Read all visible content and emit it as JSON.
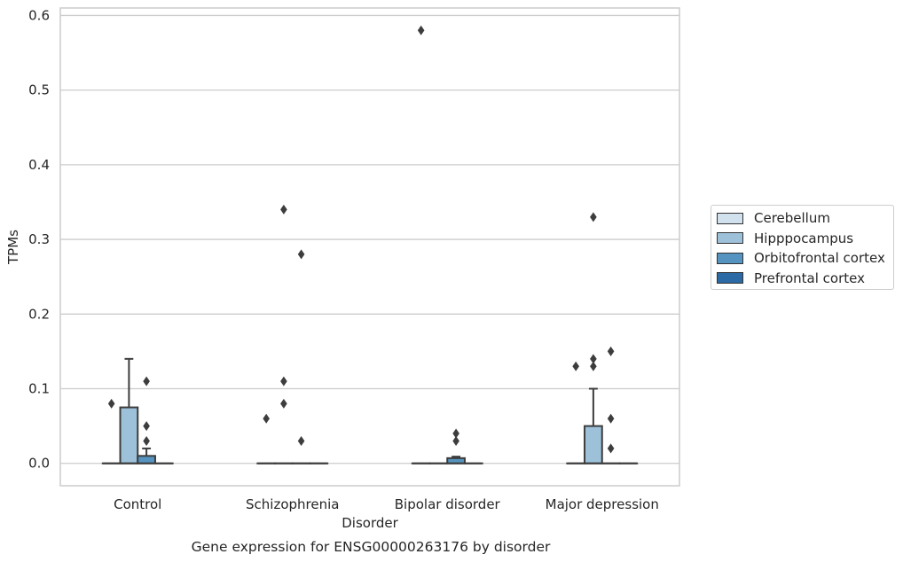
{
  "chart_data": {
    "type": "box",
    "title": "Gene expression for ENSG00000263176 by disorder",
    "xlabel": "Disorder",
    "ylabel": "TPMs",
    "ylim": [
      -0.03,
      0.61
    ],
    "yticks": [
      "0.0",
      "0.1",
      "0.2",
      "0.3",
      "0.4",
      "0.5",
      "0.6"
    ],
    "grid": true,
    "legend_placement": "right",
    "categories": [
      "Control",
      "Schizophrenia",
      "Bipolar disorder",
      "Major depression"
    ],
    "series": [
      {
        "name": "Cerebellum",
        "color": "#d1e1ee",
        "boxes": [
          {
            "q1": 0,
            "median": 0,
            "q3": 0,
            "whisker_low": 0,
            "whisker_high": 0,
            "outliers": [
              0.08
            ]
          },
          {
            "q1": 0,
            "median": 0,
            "q3": 0,
            "whisker_low": 0,
            "whisker_high": 0,
            "outliers": [
              0.06
            ]
          },
          {
            "q1": 0,
            "median": 0,
            "q3": 0,
            "whisker_low": 0,
            "whisker_high": 0,
            "outliers": [
              0.58
            ]
          },
          {
            "q1": 0,
            "median": 0,
            "q3": 0,
            "whisker_low": 0,
            "whisker_high": 0,
            "outliers": [
              0.13
            ]
          }
        ]
      },
      {
        "name": "Hipppocampus",
        "color": "#9ec1da",
        "boxes": [
          {
            "q1": 0,
            "median": 0,
            "q3": 0.075,
            "whisker_low": 0,
            "whisker_high": 0.14,
            "outliers": []
          },
          {
            "q1": 0,
            "median": 0,
            "q3": 0,
            "whisker_low": 0,
            "whisker_high": 0,
            "outliers": [
              0.34,
              0.11,
              0.08
            ]
          },
          {
            "q1": 0,
            "median": 0,
            "q3": 0,
            "whisker_low": 0,
            "whisker_high": 0,
            "outliers": []
          },
          {
            "q1": 0,
            "median": 0,
            "q3": 0.05,
            "whisker_low": 0,
            "whisker_high": 0.1,
            "outliers": [
              0.33,
              0.14,
              0.13
            ]
          }
        ]
      },
      {
        "name": "Orbitofrontal cortex",
        "color": "#5594c0",
        "boxes": [
          {
            "q1": 0,
            "median": 0,
            "q3": 0.01,
            "whisker_low": 0,
            "whisker_high": 0.02,
            "outliers": [
              0.11,
              0.05,
              0.03
            ]
          },
          {
            "q1": 0,
            "median": 0,
            "q3": 0,
            "whisker_low": 0,
            "whisker_high": 0,
            "outliers": [
              0.28,
              0.03
            ]
          },
          {
            "q1": 0,
            "median": 0,
            "q3": 0.007,
            "whisker_low": 0,
            "whisker_high": 0.009,
            "outliers": [
              0.04,
              0.03
            ]
          },
          {
            "q1": 0,
            "median": 0,
            "q3": 0,
            "whisker_low": 0,
            "whisker_high": 0,
            "outliers": [
              0.15,
              0.06,
              0.02
            ]
          }
        ]
      },
      {
        "name": "Prefrontal cortex",
        "color": "#2b6aa4",
        "boxes": [
          {
            "q1": 0,
            "median": 0,
            "q3": 0,
            "whisker_low": 0,
            "whisker_high": 0,
            "outliers": []
          },
          {
            "q1": 0,
            "median": 0,
            "q3": 0,
            "whisker_low": 0,
            "whisker_high": 0,
            "outliers": []
          },
          {
            "q1": 0,
            "median": 0,
            "q3": 0,
            "whisker_low": 0,
            "whisker_high": 0,
            "outliers": []
          },
          {
            "q1": 0,
            "median": 0,
            "q3": 0,
            "whisker_low": 0,
            "whisker_high": 0,
            "outliers": []
          }
        ]
      }
    ]
  }
}
